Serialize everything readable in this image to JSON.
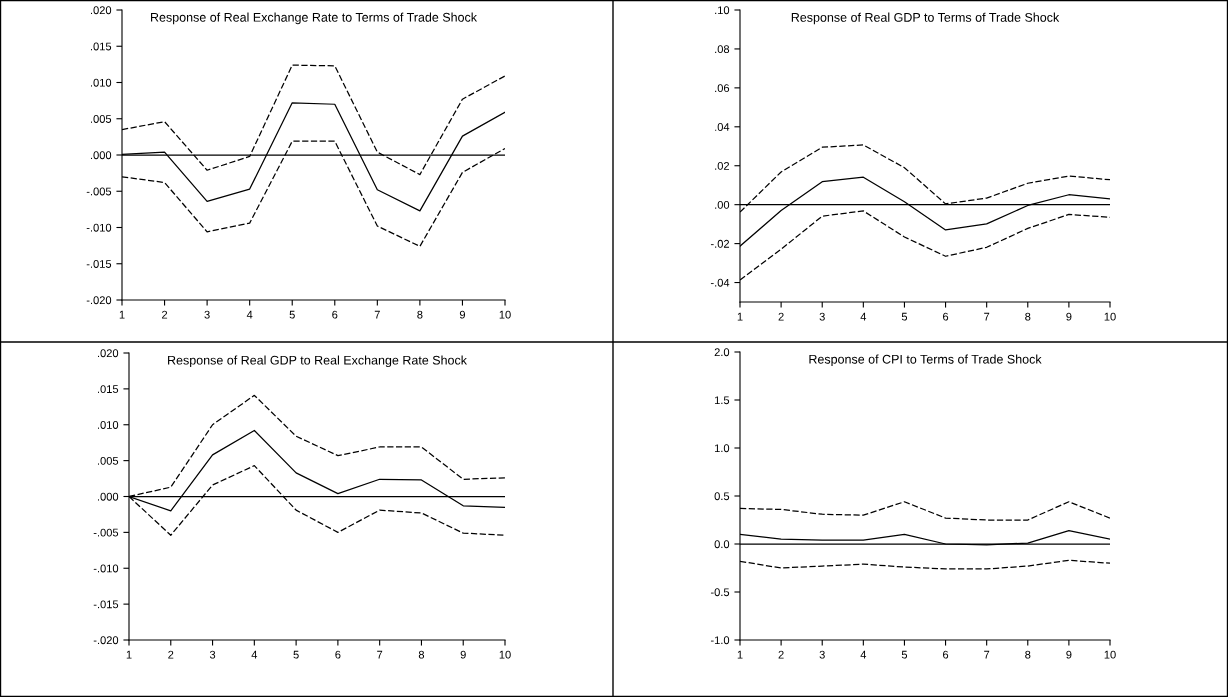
{
  "chart_data": [
    {
      "type": "line",
      "title": "Response of Real Exchange Rate to Terms of Trade Shock",
      "x": [
        1,
        2,
        3,
        4,
        5,
        6,
        7,
        8,
        9,
        10
      ],
      "xlim": [
        1,
        10
      ],
      "xticks": [
        1,
        2,
        3,
        4,
        5,
        6,
        7,
        8,
        9,
        10
      ],
      "ylim": [
        -0.02,
        0.02
      ],
      "yticks": [
        {
          "value": -0.02,
          "label": "-.020"
        },
        {
          "value": -0.015,
          "label": "-.015"
        },
        {
          "value": -0.01,
          "label": "-.010"
        },
        {
          "value": -0.005,
          "label": "-.005"
        },
        {
          "value": 0,
          "label": ".000"
        },
        {
          "value": 0.005,
          "label": ".005"
        },
        {
          "value": 0.01,
          "label": ".010"
        },
        {
          "value": 0.015,
          "label": ".015"
        },
        {
          "value": 0.02,
          "label": ".020"
        }
      ],
      "ref_lines": [
        {
          "axis": "y",
          "value": 0,
          "color": "#000000"
        }
      ],
      "grid": false,
      "legend": false,
      "marker": "none",
      "series": [
        {
          "color": "#000000",
          "line_style": "dashed",
          "values": [
            0.0035,
            0.0046,
            -0.0021,
            -0.0002,
            0.0124,
            0.0123,
            0.0004,
            -0.0027,
            0.0077,
            0.0109
          ]
        },
        {
          "color": "#000000",
          "line_style": "solid",
          "values": [
            0.0001,
            0.0004,
            -0.0064,
            -0.0047,
            0.0072,
            0.007,
            -0.0048,
            -0.0077,
            0.0026,
            0.0059
          ]
        },
        {
          "color": "#000000",
          "line_style": "dashed",
          "values": [
            -0.003,
            -0.0038,
            -0.0106,
            -0.0094,
            0.0019,
            0.0019,
            -0.0098,
            -0.0126,
            -0.0024,
            0.0009
          ]
        }
      ]
    },
    {
      "type": "line",
      "title": "Response of Real GDP to Terms of Trade Shock",
      "x": [
        1,
        2,
        3,
        4,
        5,
        6,
        7,
        8,
        9,
        10
      ],
      "xlim": [
        1,
        10
      ],
      "xticks": [
        1,
        2,
        3,
        4,
        5,
        6,
        7,
        8,
        9,
        10
      ],
      "ylim": [
        -0.05,
        0.1
      ],
      "yticks": [
        {
          "value": -0.04,
          "label": "-.04"
        },
        {
          "value": -0.02,
          "label": "-.02"
        },
        {
          "value": 0,
          "label": ".00"
        },
        {
          "value": 0.02,
          "label": ".02"
        },
        {
          "value": 0.04,
          "label": ".04"
        },
        {
          "value": 0.06,
          "label": ".06"
        },
        {
          "value": 0.08,
          "label": ".08"
        },
        {
          "value": 0.1,
          "label": ".10"
        }
      ],
      "ref_lines": [
        {
          "axis": "y",
          "value": 0,
          "color": "#000000"
        }
      ],
      "grid": false,
      "legend": false,
      "marker": "none",
      "series": [
        {
          "color": "#000000",
          "line_style": "dashed",
          "values": [
            -0.0038,
            0.0168,
            0.0295,
            0.0307,
            0.019,
            0.0004,
            0.0034,
            0.011,
            0.0147,
            0.0128
          ]
        },
        {
          "color": "#000000",
          "line_style": "solid",
          "values": [
            -0.0213,
            -0.003,
            0.0118,
            0.0141,
            0.0015,
            -0.013,
            -0.0099,
            -0.0004,
            0.0051,
            0.003
          ]
        },
        {
          "color": "#000000",
          "line_style": "dashed",
          "values": [
            -0.0387,
            -0.0229,
            -0.0059,
            -0.0032,
            -0.0166,
            -0.0265,
            -0.0219,
            -0.0122,
            -0.005,
            -0.0065
          ]
        }
      ]
    },
    {
      "type": "line",
      "title": "Response of Real GDP to Real Exchange Rate Shock",
      "x": [
        1,
        2,
        3,
        4,
        5,
        6,
        7,
        8,
        9,
        10
      ],
      "xlim": [
        1,
        10
      ],
      "xticks": [
        1,
        2,
        3,
        4,
        5,
        6,
        7,
        8,
        9,
        10
      ],
      "ylim": [
        -0.02,
        0.02
      ],
      "yticks": [
        {
          "value": -0.02,
          "label": "-.020"
        },
        {
          "value": -0.015,
          "label": "-.015"
        },
        {
          "value": -0.01,
          "label": "-.010"
        },
        {
          "value": -0.005,
          "label": "-.005"
        },
        {
          "value": 0,
          "label": ".000"
        },
        {
          "value": 0.005,
          "label": ".005"
        },
        {
          "value": 0.01,
          "label": ".010"
        },
        {
          "value": 0.015,
          "label": ".015"
        },
        {
          "value": 0.02,
          "label": ".020"
        }
      ],
      "ref_lines": [
        {
          "axis": "y",
          "value": 0,
          "color": "#000000"
        }
      ],
      "grid": false,
      "legend": false,
      "marker": "none",
      "series": [
        {
          "color": "#000000",
          "line_style": "dashed",
          "values": [
            0,
            0.0013,
            0.01,
            0.0141,
            0.0084,
            0.0057,
            0.0069,
            0.0069,
            0.0024,
            0.0026
          ]
        },
        {
          "color": "#000000",
          "line_style": "solid",
          "values": [
            0,
            -0.002,
            0.0058,
            0.0092,
            0.0033,
            0.0004,
            0.0024,
            0.0023,
            -0.0013,
            -0.0015
          ]
        },
        {
          "color": "#000000",
          "line_style": "dashed",
          "values": [
            0,
            -0.0054,
            0.0016,
            0.0043,
            -0.0019,
            -0.005,
            -0.0019,
            -0.0023,
            -0.0051,
            -0.0054
          ]
        }
      ]
    },
    {
      "type": "line",
      "title": "Response of CPI to Terms of Trade Shock",
      "x": [
        1,
        2,
        3,
        4,
        5,
        6,
        7,
        8,
        9,
        10
      ],
      "xlim": [
        1,
        10
      ],
      "xticks": [
        1,
        2,
        3,
        4,
        5,
        6,
        7,
        8,
        9,
        10
      ],
      "ylim": [
        -1.0,
        2.0
      ],
      "yticks": [
        {
          "value": -1.0,
          "label": "-1.0"
        },
        {
          "value": -0.5,
          "label": "-0.5"
        },
        {
          "value": 0,
          "label": "0.0"
        },
        {
          "value": 0.5,
          "label": "0.5"
        },
        {
          "value": 1.0,
          "label": "1.0"
        },
        {
          "value": 1.5,
          "label": "1.5"
        },
        {
          "value": 2.0,
          "label": "2.0"
        }
      ],
      "ref_lines": [
        {
          "axis": "y",
          "value": 0,
          "color": "#000000"
        }
      ],
      "grid": false,
      "legend": false,
      "marker": "none",
      "series": [
        {
          "color": "#000000",
          "line_style": "dashed",
          "values": [
            0.37,
            0.36,
            0.31,
            0.3,
            0.44,
            0.27,
            0.25,
            0.25,
            0.44,
            0.27
          ]
        },
        {
          "color": "#000000",
          "line_style": "solid",
          "values": [
            0.1,
            0.05,
            0.04,
            0.04,
            0.1,
            0.0,
            -0.01,
            0.01,
            0.14,
            0.05
          ]
        },
        {
          "color": "#000000",
          "line_style": "dashed",
          "values": [
            -0.18,
            -0.25,
            -0.23,
            -0.21,
            -0.24,
            -0.26,
            -0.26,
            -0.23,
            -0.17,
            -0.2
          ]
        }
      ]
    }
  ]
}
